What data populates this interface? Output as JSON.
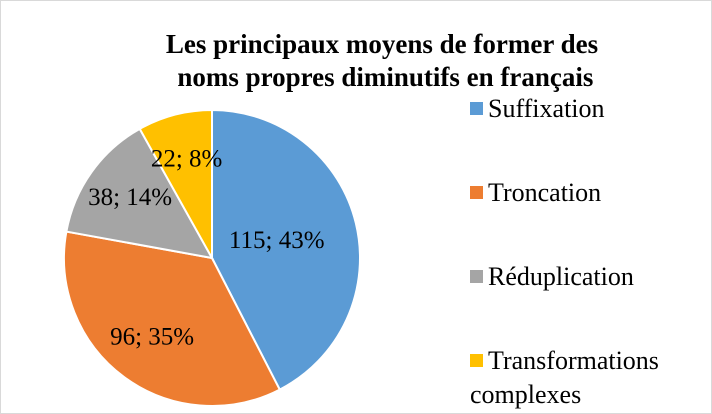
{
  "chart_data": {
    "type": "pie",
    "title": "Les principaux moyens de former des noms propres diminutifs en français",
    "categories": [
      "Suffixation",
      "Troncation",
      "Réduplication",
      "Transformations complexes"
    ],
    "values": [
      115,
      96,
      38,
      22
    ],
    "value_labels": [
      "115; 43%",
      "96; 35%",
      "38; 14%",
      "22; 8%"
    ],
    "colors": [
      "#5b9bd5",
      "#ed7d31",
      "#a5a5a5",
      "#ffc000"
    ],
    "legend": "right"
  }
}
